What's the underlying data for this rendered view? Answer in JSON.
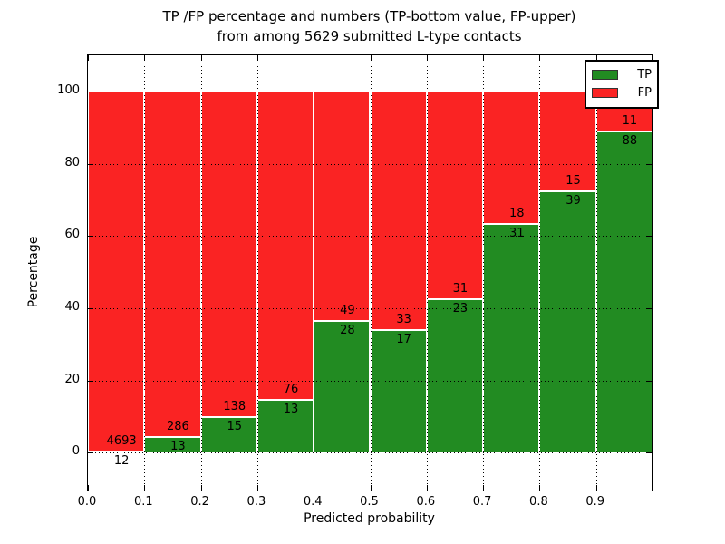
{
  "chart_data": {
    "type": "bar",
    "stacked": "percent",
    "title_line1": "TP /FP percentage and numbers (TP-bottom value, FP-upper)",
    "title_line2": "from among 5629 submitted L-type contacts",
    "xlabel": "Predicted probability",
    "ylabel": "Percentage",
    "bin_edges": [
      0.0,
      0.1,
      0.2,
      0.3,
      0.4,
      0.5,
      0.6,
      0.7,
      0.8,
      0.9,
      1.0
    ],
    "series": [
      {
        "name": "TP",
        "color": "#228b22",
        "counts": [
          12,
          13,
          15,
          13,
          28,
          17,
          23,
          31,
          39,
          88
        ]
      },
      {
        "name": "FP",
        "color": "#fa2323",
        "counts": [
          4693,
          286,
          138,
          76,
          49,
          33,
          31,
          18,
          15,
          11
        ]
      }
    ],
    "tp_percentages": [
      0.26,
      4.35,
      9.8,
      14.61,
      36.36,
      34.0,
      42.59,
      63.27,
      72.22,
      88.89
    ],
    "total_contacts": 5629,
    "xticks": [
      0.0,
      0.1,
      0.2,
      0.3,
      0.4,
      0.5,
      0.6,
      0.7,
      0.8,
      0.9
    ],
    "xtick_labels": [
      "0.0",
      "0.1",
      "0.2",
      "0.3",
      "0.4",
      "0.5",
      "0.6",
      "0.7",
      "0.8",
      "0.9"
    ],
    "yticks": [
      0,
      20,
      40,
      60,
      80,
      100
    ],
    "ytick_labels": [
      "0",
      "20",
      "40",
      "60",
      "80",
      "100"
    ],
    "xlim": [
      0.0,
      1.0
    ],
    "ylim": [
      -10.5,
      110
    ],
    "grid": true,
    "legend": {
      "position": "upper right",
      "entries": [
        "TP",
        "FP"
      ]
    }
  }
}
